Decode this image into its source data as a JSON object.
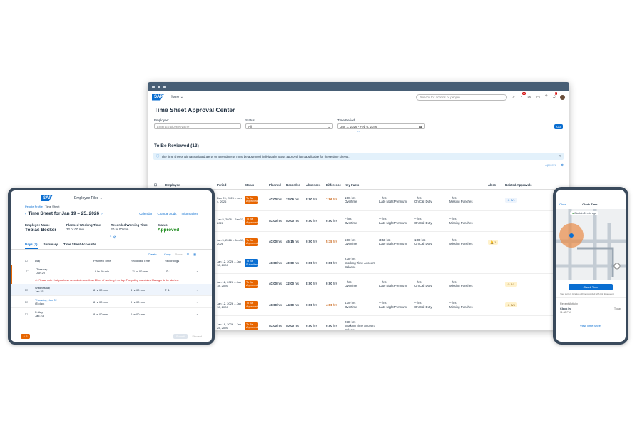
{
  "shell": {
    "home": "Home",
    "search_placeholder": "Search for actions or people",
    "badge1": "10",
    "badge2": "8"
  },
  "page": {
    "title": "Time Sheet Approval Center"
  },
  "filters": {
    "employee_label": "Employee:",
    "employee_placeholder": "Enter Employee Name",
    "status_label": "Status:",
    "status_value": "All",
    "period_label": "Time Period:",
    "period_value": "Jan 1, 2026 - Feb 6, 2026",
    "go": "Go"
  },
  "review": {
    "title": "To Be Reviewed (13)",
    "info": "The time sheets with associated alerts or amendments must be approved individually. Mass approval isn't applicable for these time sheets.",
    "approve_btn": "Approve"
  },
  "columns": [
    "Employee",
    "Period",
    "Status",
    "Planned",
    "Recorded",
    "Absences",
    "Difference",
    "Key Facts",
    "",
    "",
    "",
    "Alerts",
    "Related Approvals"
  ],
  "rows": [
    {
      "period": "Dec 29, 2025 – Jan 4, 2026",
      "status": "To Be Approved",
      "planned": "40:00",
      "recorded": "33:06",
      "absences": "8:00",
      "diff": "1:06",
      "diff_red": true,
      "f1a": "1:06",
      "f1b": "Overtime",
      "f2a": "–",
      "f2b": "Late Night Premium",
      "f3a": "–",
      "f3b": "On Call Duty",
      "f4a": "–",
      "f4b": "Missing Punches",
      "alert": "",
      "related": "0/1"
    },
    {
      "period": "Jan 5, 2026 – Jan 11, 2026",
      "status": "To Be Approved",
      "planned": "40:00",
      "recorded": "40:00",
      "absences": "0:00",
      "diff": "0:00",
      "diff_red": false,
      "f1a": "–",
      "f1b": "Overtime",
      "f2a": "–",
      "f2b": "Late Night Premium",
      "f3a": "–",
      "f3b": "On Call Duty",
      "f4a": "–",
      "f4b": "Missing Punches",
      "alert": "",
      "related": ""
    },
    {
      "period": "Jan 5, 2026 – Jan 11, 2026",
      "status": "To Be Approved",
      "planned": "40:00",
      "recorded": "45:15",
      "absences": "0:00",
      "diff": "5:15",
      "diff_red": true,
      "f1a": "5:00",
      "f1b": "Overtime",
      "f2a": "3:59",
      "f2b": "Late Night Premium",
      "f3a": "1:00",
      "f3b": "On Call Duty",
      "f4a": "–",
      "f4b": "Missing Punches",
      "alert": "1",
      "related": ""
    },
    {
      "period": "Jan 12, 2026 – Jan 18, 2026",
      "status": "To Be Submitted",
      "planned": "40:00",
      "recorded": "40:00",
      "absences": "0:00",
      "diff": "0:00",
      "diff_red": false,
      "f1a": "2:30",
      "f1b": "Working Time Account Balance",
      "f2a": "",
      "f2b": "",
      "f3a": "",
      "f3b": "",
      "f4a": "",
      "f4b": "",
      "alert": "",
      "related": ""
    },
    {
      "period": "Jan 12, 2026 – Jan 18, 2026",
      "status": "To Be Approved",
      "planned": "40:00",
      "recorded": "32:00",
      "absences": "8:00",
      "diff": "0:00",
      "diff_red": false,
      "f1a": "–",
      "f1b": "Overtime",
      "f2a": "–",
      "f2b": "Late Night Premium",
      "f3a": "–",
      "f3b": "On Call Duty",
      "f4a": "–",
      "f4b": "Missing Punches",
      "alert": "",
      "related": "1/1"
    },
    {
      "period": "Jan 12, 2026 – Jan 18, 2026",
      "status": "To Be Approved",
      "planned": "40:00",
      "recorded": "44:00",
      "absences": "0:00",
      "diff": "4:00",
      "diff_red": true,
      "f1a": "4:00",
      "f1b": "Overtime",
      "f2a": "–",
      "f2b": "Late Night Premium",
      "f3a": "–",
      "f3b": "On Call Duty",
      "f4a": "–",
      "f4b": "Missing Punches",
      "alert": "",
      "related": "3/3"
    },
    {
      "period": "Jan 19, 2026 – Jan 25, 2026",
      "status": "To Be Approved",
      "planned": "40:00",
      "recorded": "40:00",
      "absences": "0:00",
      "diff": "0:00",
      "diff_red": false,
      "f1a": "2:30",
      "f1b": "Working Time Account Balance",
      "f2a": "",
      "f2b": "",
      "f3a": "",
      "f3b": "",
      "f4a": "",
      "f4b": "",
      "alert": "",
      "related": ""
    }
  ],
  "tablet": {
    "app": "Employee Files",
    "crumb1": "People Profile",
    "crumb2": "Time Sheet",
    "title": "Time Sheet for Jan 19 – 25, 2026",
    "act1": "Calendar",
    "act2": "Change Audit",
    "act3": "Information",
    "emp_label": "Employee Name",
    "emp_name": "Tobias Becker",
    "pl_label": "Planned Working Time",
    "pl_val": "32 hr 00 min",
    "rec_label": "Recorded Working Time",
    "rec_val": "20 hr 00 min",
    "status_label": "Status",
    "status_val": "Approved",
    "tab1": "Days (7)",
    "tab2": "Summary",
    "tab3": "Time Sheet Accounts",
    "create": "Create",
    "copy": "Copy",
    "paste": "Paste",
    "col_day": "Day",
    "col_planned": "Planned Time",
    "col_recorded": "Recorded Time",
    "col_rec": "Recordings",
    "days": [
      {
        "d": "Tuesday",
        "dt": "Jan 20",
        "p": "8 hr 00 min",
        "r": "11 hr 00 min",
        "n": "1"
      },
      {
        "d": "Wednesday",
        "dt": "Jan 21",
        "p": "8 hr 00 min",
        "r": "8 hr 00 min",
        "n": "1"
      },
      {
        "d": "Thursday, Jan 22",
        "dt": "(Today)",
        "p": "8 hr 00 min",
        "r": "0 hr 00 min",
        "n": ""
      },
      {
        "d": "Friday",
        "dt": "Jan 23",
        "p": "8 hr 00 min",
        "r": "0 hr 00 min",
        "n": ""
      }
    ],
    "warning": "Please note that you have recorded more than 10hrs of working in a day. The policy mandates Manager to be alerted.",
    "footer_count": "1",
    "submit": "Submit",
    "discard": "Discard"
  },
  "phone": {
    "close": "Close",
    "title": "Clock Time",
    "note": "Clock in 24 min ago",
    "btn": "Check Time",
    "loc_note": "Your current location will be recorded with this time event",
    "recent": "Recent Activity",
    "clock_in": "Clock In",
    "today": "Today",
    "time": "11:08 PM",
    "view": "View Time Sheet"
  }
}
